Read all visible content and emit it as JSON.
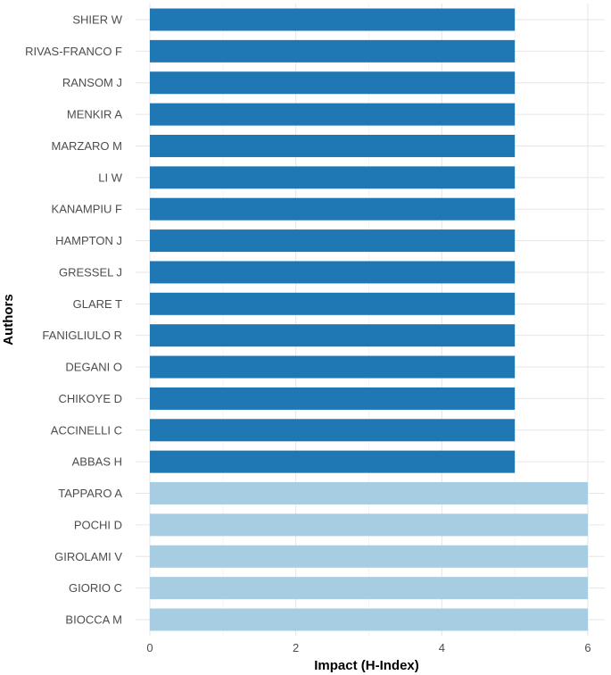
{
  "chart_data": {
    "type": "bar",
    "orientation": "horizontal",
    "title": "",
    "xlabel": "Impact (H-Index)",
    "ylabel": "Authors",
    "xlim": [
      0,
      6.12
    ],
    "xticks": [
      0,
      2,
      4,
      6
    ],
    "grid": true,
    "legend": "none",
    "colors": {
      "dark": "#1f77b4",
      "light": "#a6cde2"
    },
    "categories": [
      "SHIER W",
      "RIVAS-FRANCO F",
      "RANSOM J",
      "MENKIR A",
      "MARZARO M",
      "LI W",
      "KANAMPIU F",
      "HAMPTON J",
      "GRESSEL J",
      "GLARE T",
      "FANIGLIULO R",
      "DEGANI O",
      "CHIKOYE D",
      "ACCINELLI C",
      "ABBAS H",
      "TAPPARO A",
      "POCHI D",
      "GIROLAMI V",
      "GIORIO C",
      "BIOCCA M"
    ],
    "values": [
      5,
      5,
      5,
      5,
      5,
      5,
      5,
      5,
      5,
      5,
      5,
      5,
      5,
      5,
      5,
      6,
      6,
      6,
      6,
      6
    ]
  }
}
